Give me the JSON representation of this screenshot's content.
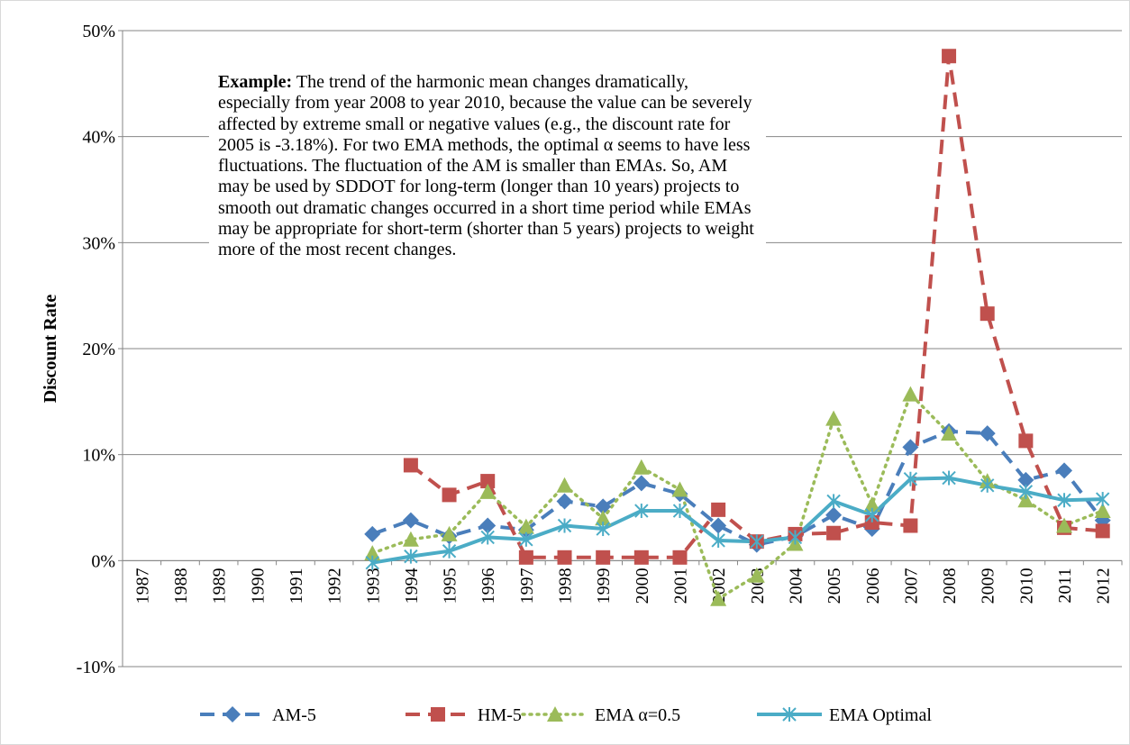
{
  "chart_data": {
    "type": "line",
    "y_label": "Discount Rate",
    "annotation_label": "Example:",
    "annotation": "The trend of the harmonic mean changes dramatically, especially from year 2008 to year 2010, because the value can be severely affected by extreme small or negative values (e.g., the discount rate for 2005 is -3.18%). For two EMA methods, the optimal α seems to have less fluctuations. The fluctuation of the AM is smaller than EMAs. So, AM may be used by SDDOT for long-term (longer than 10 years) projects to smooth out dramatic changes occurred in a short time period while EMAs may be appropriate for short-term (shorter than 5 years) projects to weight more of the most recent changes.",
    "categories": [
      "1987",
      "1988",
      "1989",
      "1990",
      "1991",
      "1992",
      "1993",
      "1994",
      "1995",
      "1996",
      "1997",
      "1998",
      "1999",
      "2000",
      "2001",
      "2002",
      "2003",
      "2004",
      "2005",
      "2006",
      "2007",
      "2008",
      "2009",
      "2010",
      "2011",
      "2012"
    ],
    "series": [
      {
        "name": "AM-5",
        "color": "#4a7ebb",
        "marker": "diamond",
        "line_style": "dash",
        "values": [
          null,
          null,
          null,
          null,
          null,
          null,
          2.5,
          3.8,
          2.3,
          3.3,
          2.9,
          5.6,
          5.1,
          7.3,
          6.3,
          3.3,
          1.5,
          2.3,
          4.3,
          3.0,
          10.7,
          12.2,
          12.0,
          7.6,
          8.5,
          3.8
        ]
      },
      {
        "name": "HM-5",
        "color": "#c0504d",
        "marker": "square",
        "line_style": "dash",
        "values": [
          null,
          null,
          null,
          null,
          null,
          null,
          null,
          9.0,
          6.2,
          7.5,
          0.3,
          0.3,
          0.3,
          0.3,
          0.3,
          4.8,
          1.8,
          2.5,
          2.6,
          3.6,
          3.3,
          47.6,
          23.3,
          11.3,
          3.1,
          2.8
        ]
      },
      {
        "name": "EMA α=0.5",
        "color": "#9bbb59",
        "marker": "triangle",
        "line_style": "dot",
        "values": [
          null,
          null,
          null,
          null,
          null,
          null,
          0.7,
          2.0,
          2.5,
          6.5,
          3.2,
          7.1,
          4.0,
          8.8,
          6.7,
          -3.6,
          -1.4,
          1.6,
          13.4,
          5.3,
          15.7,
          12.0,
          7.5,
          5.7,
          3.3,
          4.7
        ]
      },
      {
        "name": "EMA Optimal",
        "color": "#4bacc6",
        "marker": "star",
        "line_style": "solid",
        "values": [
          null,
          null,
          null,
          null,
          null,
          null,
          -0.2,
          0.4,
          0.9,
          2.2,
          2.0,
          3.3,
          3.0,
          4.7,
          4.7,
          1.9,
          1.8,
          2.2,
          5.6,
          4.3,
          7.7,
          7.8,
          7.1,
          6.5,
          5.7,
          5.8
        ]
      }
    ],
    "ylim": [
      -10,
      50
    ],
    "yticks": [
      {
        "value": -10,
        "label": "-10%"
      },
      {
        "value": 0,
        "label": "0%"
      },
      {
        "value": 10,
        "label": "10%"
      },
      {
        "value": 20,
        "label": "20%"
      },
      {
        "value": 30,
        "label": "30%"
      },
      {
        "value": 40,
        "label": "40%"
      },
      {
        "value": 50,
        "label": "50%"
      }
    ],
    "grid": true,
    "legend": "bottom"
  }
}
